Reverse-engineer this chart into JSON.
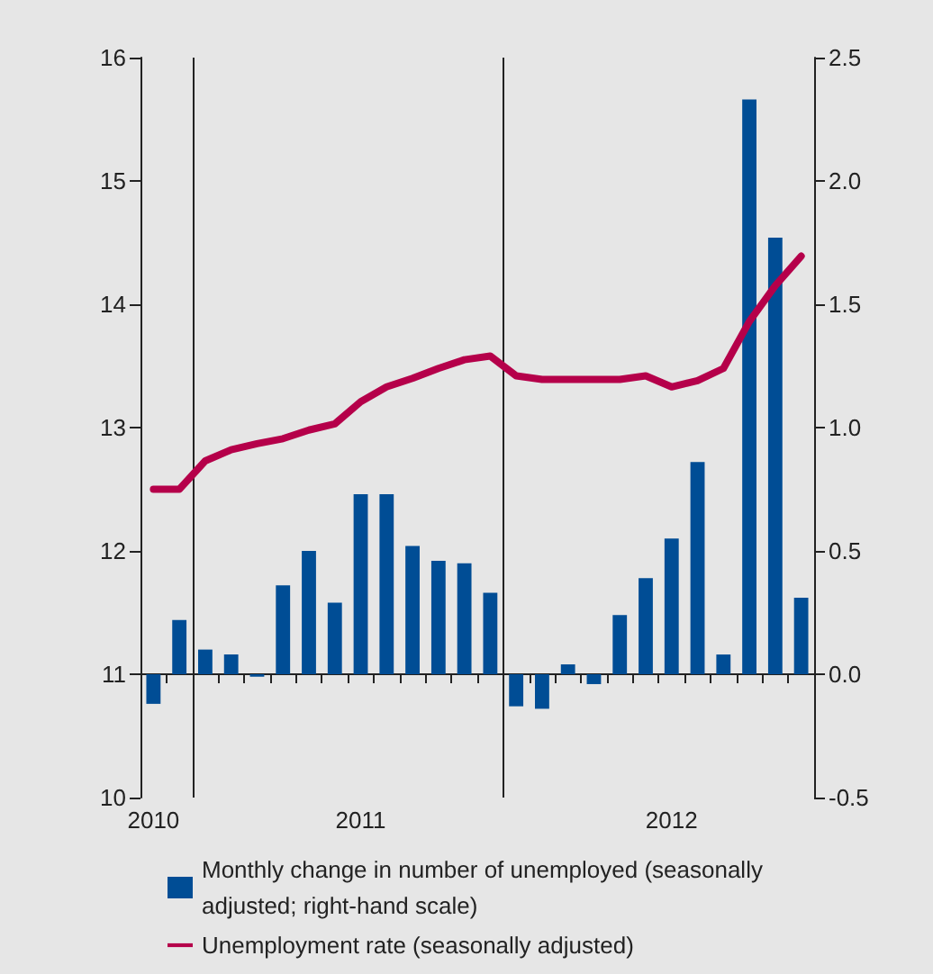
{
  "chart_data": {
    "type": "bar",
    "categories": [
      "2010",
      null,
      null,
      null,
      null,
      null,
      null,
      null,
      "2011",
      null,
      null,
      null,
      null,
      null,
      null,
      null,
      null,
      null,
      null,
      null,
      "2012",
      null,
      null,
      null,
      null,
      null
    ],
    "series": [
      {
        "name": "Monthly change in number of unemployed (seasonally adjusted; right-hand scale)",
        "axis": "y2",
        "color": "#004d95",
        "values": [
          -0.12,
          0.22,
          0.1,
          0.08,
          -0.01,
          0.36,
          0.5,
          0.29,
          0.73,
          0.73,
          0.52,
          0.46,
          0.45,
          0.33,
          -0.13,
          -0.14,
          0.04,
          -0.04,
          0.24,
          0.39,
          0.55,
          0.86,
          0.08,
          2.33,
          1.77,
          0.31
        ]
      },
      {
        "name": "Unemployment rate (seasonally adjusted)",
        "type": "line",
        "color": "#b5004a",
        "values": [
          12.5,
          12.5,
          12.73,
          12.82,
          12.87,
          12.91,
          12.98,
          13.03,
          13.21,
          13.33,
          13.4,
          13.48,
          13.55,
          13.58,
          13.42,
          13.39,
          13.39,
          13.39,
          13.39,
          13.42,
          13.33,
          13.38,
          13.48,
          13.86,
          14.15,
          14.39
        ]
      }
    ],
    "ylim": [
      10,
      16
    ],
    "yticks": [
      10,
      11,
      12,
      13,
      14,
      15,
      16
    ],
    "y2lim": [
      -0.5,
      2.5
    ],
    "y2ticks": [
      {
        "value": -0.5,
        "label": "-0.5"
      },
      {
        "value": 0,
        "label": "0.0"
      },
      {
        "value": 0.5,
        "label": "0.5"
      },
      {
        "value": 1,
        "label": "1.0"
      },
      {
        "value": 1.5,
        "label": "1.5"
      },
      {
        "value": 2,
        "label": "2.0"
      },
      {
        "value": 2.5,
        "label": "2.5"
      }
    ],
    "legend": "bottom",
    "marker": "none",
    "line_style": "solid"
  }
}
